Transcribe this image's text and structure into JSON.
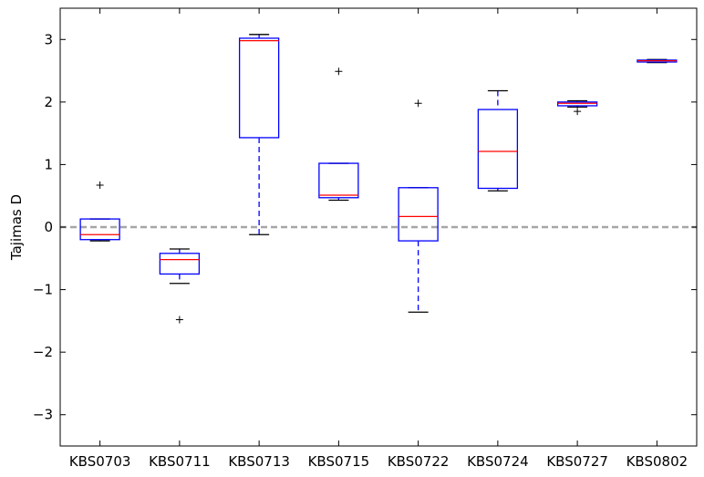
{
  "chart_data": {
    "type": "boxplot",
    "ylabel": "Tajimas D",
    "ylim": [
      -3.5,
      3.5
    ],
    "yticks": [
      -3,
      -2,
      -1,
      0,
      1,
      2,
      3
    ],
    "ytick_labels": [
      "−3",
      "−2",
      "−1",
      "0",
      "1",
      "2",
      "3"
    ],
    "categories": [
      "KBS0703",
      "KBS0711",
      "KBS0713",
      "KBS0715",
      "KBS0722",
      "KBS0724",
      "KBS0727",
      "KBS0802"
    ],
    "boxes": [
      {
        "whisker_low": -0.22,
        "q1": -0.2,
        "median": -0.12,
        "q3": 0.13,
        "whisker_high": 0.13,
        "outliers": [
          0.67
        ]
      },
      {
        "whisker_low": -0.9,
        "q1": -0.75,
        "median": -0.52,
        "q3": -0.42,
        "whisker_high": -0.35,
        "outliers": [
          -1.48
        ]
      },
      {
        "whisker_low": -0.12,
        "q1": 1.43,
        "median": 2.98,
        "q3": 3.02,
        "whisker_high": 3.08,
        "outliers": []
      },
      {
        "whisker_low": 0.43,
        "q1": 0.47,
        "median": 0.51,
        "q3": 1.02,
        "whisker_high": 1.02,
        "outliers": [
          2.49
        ]
      },
      {
        "whisker_low": -1.36,
        "q1": -0.22,
        "median": 0.17,
        "q3": 0.63,
        "whisker_high": 0.63,
        "outliers": [
          1.98
        ]
      },
      {
        "whisker_low": 0.58,
        "q1": 0.62,
        "median": 1.21,
        "q3": 1.88,
        "whisker_high": 2.18,
        "outliers": []
      },
      {
        "whisker_low": 1.92,
        "q1": 1.94,
        "median": 1.98,
        "q3": 2.0,
        "whisker_high": 2.02,
        "outliers": [
          1.85
        ]
      },
      {
        "whisker_low": 2.63,
        "q1": 2.64,
        "median": 2.66,
        "q3": 2.67,
        "whisker_high": 2.68,
        "outliers": []
      }
    ],
    "reference_line": {
      "y": 0,
      "style": "dashed",
      "color": "#a6a6a6"
    },
    "colors": {
      "box": "#0000ff",
      "median": "#ff0000",
      "whisker_cap": "#000000",
      "outlier": "#000000",
      "axes": "#000000"
    }
  }
}
